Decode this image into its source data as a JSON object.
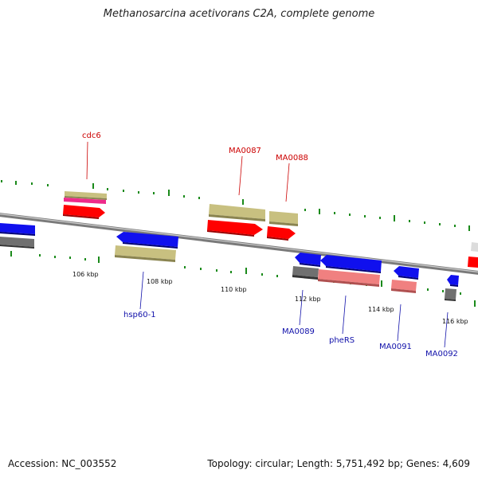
{
  "title": "Methanosarcina acetivorans C2A, complete genome",
  "footer": {
    "accession": "Accession: NC_003552",
    "topology": "Topology: circular; Length: 5,751,492 bp; Genes: 4,609"
  },
  "ticks": [
    "106 kbp",
    "108 kbp",
    "110 kbp",
    "112 kbp",
    "114 kbp",
    "116 kbp"
  ],
  "labels": {
    "cdc6": "cdc6",
    "ma0087": "MA0087",
    "ma0088": "MA0088",
    "hsp60": "hsp60-1",
    "ma0089": "MA0089",
    "phers": "pheRS",
    "ma0091": "MA0091",
    "ma0092": "MA0092"
  },
  "colors": {
    "cds": "#ff0000",
    "gene": "#c8c080",
    "rna": "#ee2a8a",
    "reverse_cds": "#1010ee",
    "reverse_gray": "#707070",
    "reverse_salmon": "#f08080",
    "tick": "#1a8a1a",
    "backbone": "#909090",
    "forward_label": "#cc0000",
    "reverse_label": "#1010aa"
  }
}
